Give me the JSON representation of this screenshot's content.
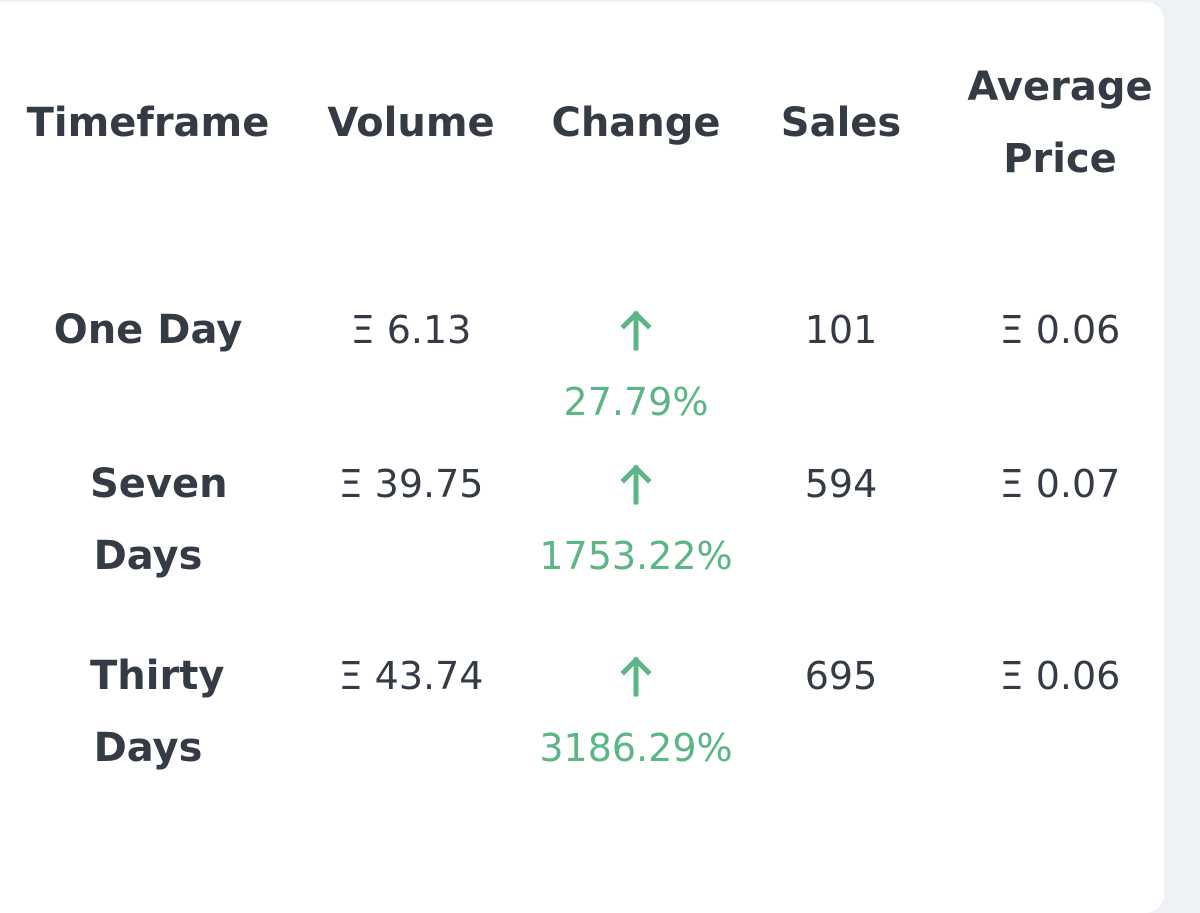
{
  "table": {
    "headers": [
      "Timeframe",
      "Volume",
      "Change",
      "Sales",
      "Average Price"
    ],
    "rows": [
      {
        "timeframe": "One Day",
        "volume": "Ξ 6.13",
        "change": "27.79%",
        "sales": "101",
        "avg_price": "Ξ 0.06"
      },
      {
        "timeframe": "Seven Days",
        "volume": "Ξ 39.75",
        "change": "1753.22%",
        "sales": "594",
        "avg_price": "Ξ 0.07"
      },
      {
        "timeframe": "Thirty Days",
        "volume": "Ξ 43.74",
        "change": "3186.29%",
        "sales": "695",
        "avg_price": "Ξ 0.06"
      }
    ]
  },
  "colors": {
    "text": "#353b44",
    "positive": "#5bb584",
    "card": "#ffffff",
    "page": "#eef1f6"
  },
  "icons": {
    "change_direction": "arrow-up-icon"
  }
}
